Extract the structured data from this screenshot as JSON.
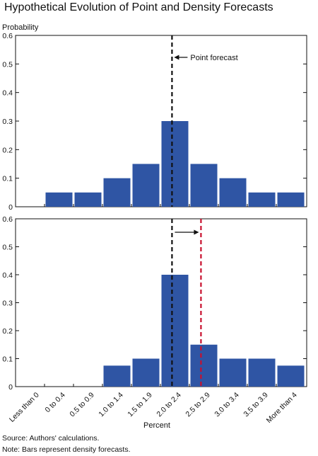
{
  "title": "Hypothetical Evolution of Point and Density Forecasts",
  "source": "Source: Authors' calculations.",
  "note": "Note: Bars represent density forecasts.",
  "colors": {
    "bar": "#2f55a4",
    "point_line": "#111111",
    "new_line": "#c8102e",
    "axis": "#111111"
  },
  "chart_data": [
    {
      "type": "bar",
      "title": "",
      "ylabel": "Probability",
      "xlabel": "",
      "ylim": [
        0,
        0.6
      ],
      "yticks": [
        0,
        0.1,
        0.2,
        0.3,
        0.4,
        0.5,
        0.6
      ],
      "categories": [
        "Less than 0",
        "0 to 0.4",
        "0.5 to 0.9",
        "1.0 to 1.4",
        "1.5 to 1.9",
        "2.0 to 2.4",
        "2.5 to 2.9",
        "3.0 to 3.4",
        "3.5 to 3.9",
        "More than 4"
      ],
      "values": [
        0,
        0.05,
        0.05,
        0.1,
        0.15,
        0.3,
        0.15,
        0.1,
        0.05,
        0.05
      ],
      "point_forecast": 2.2,
      "annotation": "Point forecast",
      "grid": false
    },
    {
      "type": "bar",
      "title": "",
      "ylabel": "",
      "xlabel": "Percent",
      "ylim": [
        0,
        0.6
      ],
      "yticks": [
        0,
        0.1,
        0.2,
        0.3,
        0.4,
        0.5,
        0.6
      ],
      "categories": [
        "Less than 0",
        "0 to 0.4",
        "0.5 to 0.9",
        "1.0 to 1.4",
        "1.5 to 1.9",
        "2.0 to 2.4",
        "2.5 to 2.9",
        "3.0 to 3.4",
        "3.5 to 3.9",
        "More than 4"
      ],
      "values": [
        0,
        0,
        0,
        0.075,
        0.1,
        0.4,
        0.15,
        0.1,
        0.1,
        0.075
      ],
      "point_forecast": 2.2,
      "new_point_forecast": 2.7,
      "grid": false
    }
  ]
}
